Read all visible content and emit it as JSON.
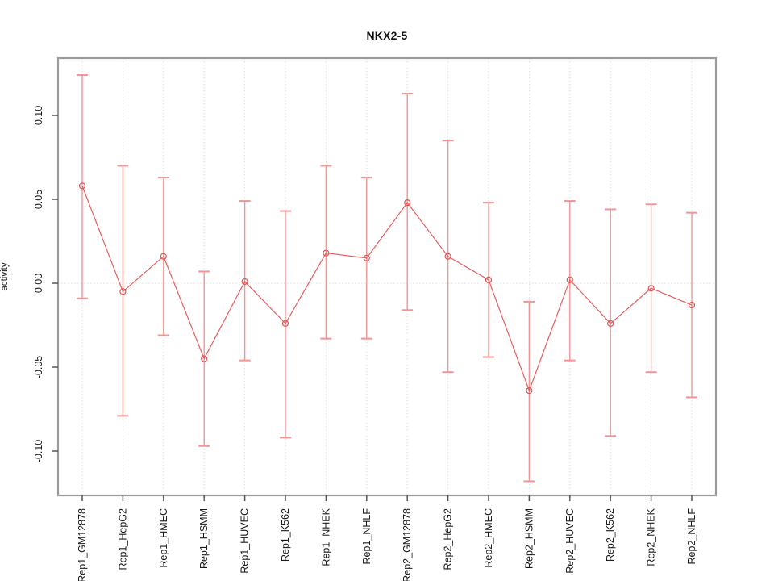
{
  "chart_data": {
    "type": "line",
    "title": "NKX2-5",
    "ylabel": "activity",
    "xlabel": "",
    "legend": "none",
    "grid": "vertical dotted gridline at each category; dotted horizontal line at y=0",
    "categories": [
      "Rep1_GM12878",
      "Rep1_HepG2",
      "Rep1_HMEC",
      "Rep1_HSMM",
      "Rep1_HUVEC",
      "Rep1_K562",
      "Rep1_NHEK",
      "Rep1_NHLF",
      "Rep2_GM12878",
      "Rep2_HepG2",
      "Rep2_HMEC",
      "Rep2_HSMM",
      "Rep2_HUVEC",
      "Rep2_K562",
      "Rep2_NHEK",
      "Rep2_NHLF"
    ],
    "series": [
      {
        "name": "activity",
        "values": [
          0.058,
          -0.005,
          0.016,
          -0.045,
          0.001,
          -0.024,
          0.018,
          0.015,
          0.048,
          0.016,
          0.002,
          -0.064,
          0.002,
          -0.024,
          -0.003,
          -0.013
        ],
        "error_upper": [
          0.124,
          0.07,
          0.063,
          0.007,
          0.049,
          0.043,
          0.07,
          0.063,
          0.113,
          0.085,
          0.048,
          -0.011,
          0.049,
          0.044,
          0.047,
          0.042
        ],
        "error_lower": [
          -0.009,
          -0.079,
          -0.031,
          -0.097,
          -0.046,
          -0.092,
          -0.033,
          -0.033,
          -0.016,
          -0.053,
          -0.044,
          -0.118,
          -0.046,
          -0.091,
          -0.053,
          -0.068
        ]
      }
    ],
    "ylim": [
      -0.126,
      0.134
    ],
    "yticks": [
      -0.1,
      -0.05,
      0.0,
      0.05,
      0.1
    ],
    "ytick_labels": [
      "-0.10",
      "-0.05",
      "0.00",
      "0.05",
      "0.10"
    ],
    "colors": {
      "series_line": "#e95d5d",
      "point_outline": "#e65454",
      "error_bar": "#f49494",
      "gridline": "#dddddd",
      "zero_line": "#dcdcdc",
      "plot_border": "#9b9b9b",
      "tick": "#555555",
      "text": "#1a1a1a"
    }
  }
}
